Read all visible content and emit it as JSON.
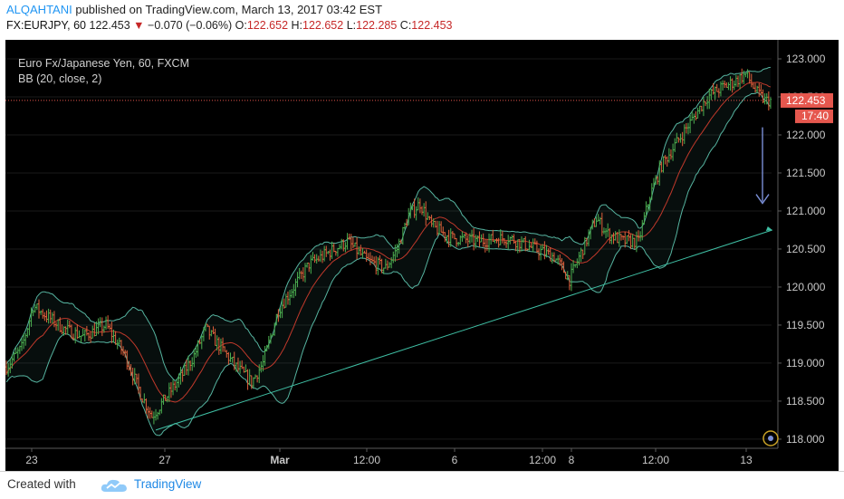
{
  "header": {
    "author": "ALQAHTANI",
    "published_text": "published on TradingView.com, March 13, 2017 03:42 EST",
    "symbol": "FX:EURJPY, 60",
    "last": "122.453",
    "change": "−0.070 (−0.06%)",
    "o_label": "O:",
    "o": "122.652",
    "h_label": "H:",
    "h": "122.652",
    "l_label": "L:",
    "l": "122.285",
    "c_label": "C:",
    "c": "122.453"
  },
  "legend": {
    "instrument": "Euro Fx/Japanese Yen, 60, FXCM",
    "indicator": "BB (20, close, 2)"
  },
  "footer": {
    "created_with": "Created with",
    "brand": "TradingView"
  },
  "colors": {
    "background": "#000000",
    "up": "#4caf50",
    "down": "#e0603b",
    "band": "#56b4a0",
    "basis": "#c0392b",
    "trendline": "#3fbfa4",
    "arrow": "#7a8fd6",
    "price_tag": "#e5574e",
    "grid": "#1a1a1a"
  },
  "chart_data": {
    "type": "candlestick",
    "title": "Euro Fx/Japanese Yen, 60, FXCM",
    "indicator": "BB (20, close, 2)",
    "y_ticks": [
      "118.000",
      "118.500",
      "119.000",
      "119.500",
      "120.000",
      "120.500",
      "121.000",
      "121.500",
      "122.000",
      "122.500",
      "123.000"
    ],
    "ylim": [
      117.88,
      123.25
    ],
    "x_ticks": [
      "23",
      "27",
      "Mar",
      "12:00",
      "6",
      "12:00",
      "8",
      "12:00",
      "13"
    ],
    "last_price": "122.453",
    "countdown": "17:40",
    "price_path": [
      [
        0,
        118.95
      ],
      [
        8,
        119.2
      ],
      [
        14,
        119.75
      ],
      [
        22,
        119.6
      ],
      [
        30,
        119.45
      ],
      [
        40,
        119.35
      ],
      [
        52,
        119.5
      ],
      [
        62,
        119.1
      ],
      [
        70,
        118.6
      ],
      [
        76,
        118.3
      ],
      [
        82,
        118.5
      ],
      [
        92,
        118.85
      ],
      [
        98,
        119.1
      ],
      [
        104,
        119.45
      ],
      [
        112,
        119.2
      ],
      [
        120,
        118.95
      ],
      [
        128,
        118.75
      ],
      [
        134,
        119.0
      ],
      [
        142,
        119.7
      ],
      [
        150,
        120.0
      ],
      [
        158,
        120.3
      ],
      [
        168,
        120.45
      ],
      [
        178,
        120.6
      ],
      [
        188,
        120.35
      ],
      [
        198,
        120.25
      ],
      [
        204,
        120.5
      ],
      [
        210,
        120.95
      ],
      [
        216,
        121.1
      ],
      [
        222,
        120.8
      ],
      [
        232,
        120.65
      ],
      [
        246,
        120.6
      ],
      [
        262,
        120.65
      ],
      [
        276,
        120.5
      ],
      [
        286,
        120.4
      ],
      [
        294,
        120.1
      ],
      [
        300,
        120.45
      ],
      [
        308,
        120.9
      ],
      [
        314,
        120.7
      ],
      [
        322,
        120.6
      ],
      [
        330,
        120.6
      ],
      [
        336,
        121.2
      ],
      [
        342,
        121.6
      ],
      [
        350,
        121.9
      ],
      [
        358,
        122.2
      ],
      [
        366,
        122.5
      ],
      [
        372,
        122.6
      ],
      [
        380,
        122.7
      ],
      [
        386,
        122.8
      ],
      [
        392,
        122.55
      ],
      [
        396,
        122.45
      ]
    ],
    "trendline": {
      "start": [
        78,
        118.12
      ],
      "end": [
        398,
        120.75
      ]
    },
    "arrow": {
      "from": 122.1,
      "to": 121.1
    },
    "candle_count": 400
  }
}
